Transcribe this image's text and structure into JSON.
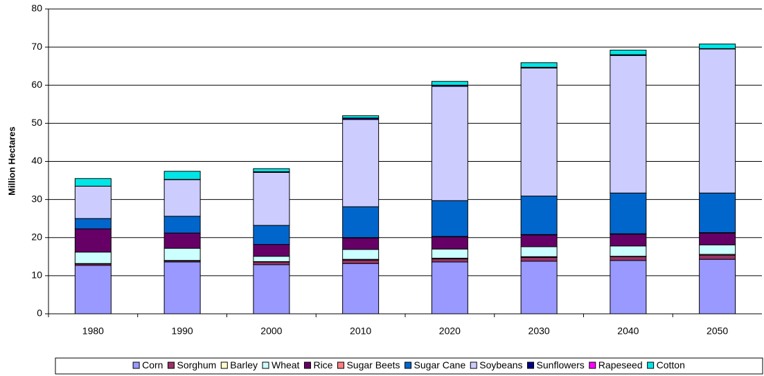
{
  "chart_data": {
    "type": "stacked_bar",
    "y_label": "Million Hectares",
    "categories": [
      "1980",
      "1990",
      "2000",
      "2010",
      "2020",
      "2030",
      "2040",
      "2050"
    ],
    "ylim": [
      0,
      80
    ],
    "yticks": [
      0,
      10,
      20,
      30,
      40,
      50,
      60,
      70,
      80
    ],
    "grid": true,
    "legend": "bottom",
    "series": [
      {
        "name": "Corn",
        "color": "#9999ff",
        "values": [
          12.7,
          13.6,
          12.9,
          13.2,
          13.6,
          13.8,
          14.0,
          14.3
        ]
      },
      {
        "name": "Sorghum",
        "color": "#993366",
        "values": [
          0.4,
          0.3,
          0.7,
          0.9,
          0.8,
          1.0,
          1.0,
          1.1
        ]
      },
      {
        "name": "Barley",
        "color": "#ffffcc",
        "values": [
          0.1,
          0.1,
          0.1,
          0.2,
          0.2,
          0.2,
          0.1,
          0.2
        ]
      },
      {
        "name": "Wheat",
        "color": "#ccffff",
        "values": [
          3.0,
          3.2,
          1.4,
          2.6,
          2.4,
          2.6,
          2.7,
          2.5
        ]
      },
      {
        "name": "Rice",
        "color": "#660066",
        "values": [
          6.1,
          4.0,
          3.1,
          3.0,
          3.2,
          3.1,
          3.1,
          3.1
        ]
      },
      {
        "name": "Sugar Beets",
        "color": "#ff8080",
        "values": [
          0,
          0,
          0,
          0.1,
          0.1,
          0.1,
          0.1,
          0.1
        ]
      },
      {
        "name": "Sugar Cane",
        "color": "#0066cc",
        "values": [
          2.7,
          4.4,
          5.0,
          8.1,
          9.4,
          10.1,
          10.7,
          10.4
        ]
      },
      {
        "name": "Soybeans",
        "color": "#ccccff",
        "values": [
          8.5,
          9.6,
          13.9,
          22.9,
          30.0,
          33.6,
          36.1,
          37.8
        ]
      },
      {
        "name": "Sunflowers",
        "color": "#000080",
        "values": [
          0,
          0.1,
          0.2,
          0.4,
          0.3,
          0.2,
          0.2,
          0.1
        ]
      },
      {
        "name": "Rapeseed",
        "color": "#ff00ff",
        "values": [
          0,
          0,
          0,
          0,
          0,
          0,
          0,
          0
        ]
      },
      {
        "name": "Cotton",
        "color": "#00e6e6",
        "values": [
          2.0,
          2.1,
          0.8,
          0.6,
          1.0,
          1.2,
          1.2,
          1.2
        ]
      }
    ]
  }
}
